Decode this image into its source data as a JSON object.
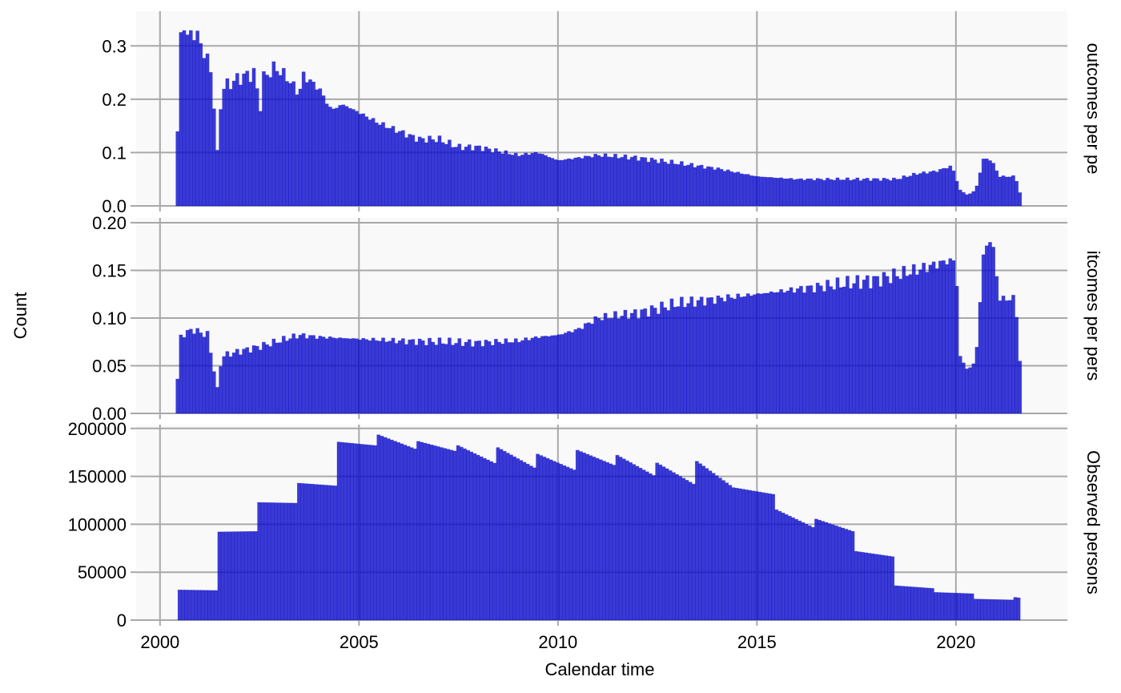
{
  "chart_data": {
    "type": "bar",
    "xlabel": "Calendar time",
    "ylabel": "Count",
    "x_ticks": [
      2000,
      2005,
      2010,
      2015,
      2020
    ],
    "xlim": [
      1999.4,
      2022.8
    ],
    "bar_color": "#1010cc",
    "panel_background": "#f9f9f9",
    "grid_color": "#a8a8a8",
    "panels": [
      {
        "strip_label": "outcomes per pe",
        "ylim": [
          0,
          0.365
        ],
        "y_ticks": [
          "0.0",
          "0.1",
          "0.2",
          "0.3"
        ],
        "y_tick_values": [
          0.0,
          0.1,
          0.2,
          0.3
        ],
        "knots": [
          [
            2000.4,
            0.015
          ],
          [
            2000.5,
            0.31
          ],
          [
            2000.6,
            0.345
          ],
          [
            2000.7,
            0.31
          ],
          [
            2000.8,
            0.33
          ],
          [
            2001.0,
            0.31
          ],
          [
            2001.3,
            0.25
          ],
          [
            2001.45,
            0.09
          ],
          [
            2001.55,
            0.22
          ],
          [
            2002.0,
            0.24
          ],
          [
            2002.4,
            0.25
          ],
          [
            2002.5,
            0.17
          ],
          [
            2002.6,
            0.24
          ],
          [
            2002.9,
            0.26
          ],
          [
            2003.2,
            0.24
          ],
          [
            2003.5,
            0.21
          ],
          [
            2003.6,
            0.245
          ],
          [
            2004.0,
            0.22
          ],
          [
            2004.3,
            0.18
          ],
          [
            2004.6,
            0.19
          ],
          [
            2005.0,
            0.175
          ],
          [
            2005.5,
            0.155
          ],
          [
            2006.0,
            0.14
          ],
          [
            2006.5,
            0.125
          ],
          [
            2007.0,
            0.125
          ],
          [
            2007.5,
            0.11
          ],
          [
            2008.0,
            0.11
          ],
          [
            2009.0,
            0.095
          ],
          [
            2009.5,
            0.1
          ],
          [
            2010.0,
            0.085
          ],
          [
            2010.5,
            0.09
          ],
          [
            2011.0,
            0.095
          ],
          [
            2012.0,
            0.09
          ],
          [
            2013.0,
            0.08
          ],
          [
            2014.0,
            0.07
          ],
          [
            2015.0,
            0.055
          ],
          [
            2016.0,
            0.05
          ],
          [
            2017.0,
            0.05
          ],
          [
            2018.0,
            0.05
          ],
          [
            2018.5,
            0.05
          ],
          [
            2019.0,
            0.06
          ],
          [
            2019.5,
            0.065
          ],
          [
            2019.9,
            0.075
          ],
          [
            2020.1,
            0.03
          ],
          [
            2020.3,
            0.02
          ],
          [
            2020.5,
            0.03
          ],
          [
            2020.7,
            0.09
          ],
          [
            2020.9,
            0.085
          ],
          [
            2021.1,
            0.055
          ],
          [
            2021.5,
            0.055
          ],
          [
            2021.6,
            0.025
          ]
        ]
      },
      {
        "strip_label": "itcomes per pers",
        "ylim": [
          0,
          0.205
        ],
        "y_ticks": [
          "0.00",
          "0.05",
          "0.10",
          "0.15",
          "0.20"
        ],
        "y_tick_values": [
          0.0,
          0.05,
          0.1,
          0.15,
          0.2
        ],
        "knots": [
          [
            2000.4,
            0.004
          ],
          [
            2000.5,
            0.08
          ],
          [
            2000.8,
            0.088
          ],
          [
            2001.2,
            0.082
          ],
          [
            2001.45,
            0.024
          ],
          [
            2001.55,
            0.06
          ],
          [
            2002.0,
            0.065
          ],
          [
            2002.5,
            0.07
          ],
          [
            2003.0,
            0.076
          ],
          [
            2003.5,
            0.082
          ],
          [
            2004.0,
            0.08
          ],
          [
            2005.0,
            0.078
          ],
          [
            2006.0,
            0.076
          ],
          [
            2007.0,
            0.075
          ],
          [
            2008.0,
            0.074
          ],
          [
            2009.0,
            0.076
          ],
          [
            2009.5,
            0.08
          ],
          [
            2010.0,
            0.082
          ],
          [
            2010.5,
            0.088
          ],
          [
            2011.0,
            0.1
          ],
          [
            2012.0,
            0.105
          ],
          [
            2013.0,
            0.115
          ],
          [
            2014.0,
            0.12
          ],
          [
            2015.0,
            0.125
          ],
          [
            2016.0,
            0.13
          ],
          [
            2017.0,
            0.135
          ],
          [
            2018.0,
            0.14
          ],
          [
            2019.0,
            0.15
          ],
          [
            2019.8,
            0.16
          ],
          [
            2020.0,
            0.16
          ],
          [
            2020.1,
            0.06
          ],
          [
            2020.3,
            0.045
          ],
          [
            2020.5,
            0.055
          ],
          [
            2020.7,
            0.17
          ],
          [
            2020.9,
            0.185
          ],
          [
            2021.1,
            0.12
          ],
          [
            2021.5,
            0.12
          ],
          [
            2021.6,
            0.055
          ]
        ]
      },
      {
        "strip_label": "Observed persons",
        "ylim": [
          0,
          204000
        ],
        "y_ticks": [
          "0",
          "50000",
          "100000",
          "150000",
          "200000"
        ],
        "y_tick_values": [
          0,
          50000,
          100000,
          150000,
          200000
        ],
        "steps": [
          [
            2000.45,
            31500,
            30900
          ],
          [
            2001.45,
            92000,
            92600
          ],
          [
            2002.45,
            122800,
            122000
          ],
          [
            2003.45,
            143000,
            140000
          ],
          [
            2004.45,
            186000,
            182000
          ],
          [
            2005.45,
            194000,
            178000
          ],
          [
            2006.45,
            187000,
            176000
          ],
          [
            2007.45,
            183000,
            163000
          ],
          [
            2008.45,
            181000,
            158000
          ],
          [
            2009.45,
            174000,
            156000
          ],
          [
            2010.45,
            178000,
            161000
          ],
          [
            2011.45,
            173000,
            150000
          ],
          [
            2012.45,
            165000,
            141000
          ],
          [
            2013.45,
            167000,
            137000
          ],
          [
            2014.45,
            138000,
            131000
          ],
          [
            2015.45,
            116000,
            96000
          ],
          [
            2016.45,
            106000,
            92000
          ],
          [
            2017.45,
            72000,
            66000
          ],
          [
            2018.45,
            36000,
            33000
          ],
          [
            2019.45,
            29000,
            27500
          ],
          [
            2020.45,
            22000,
            21000
          ],
          [
            2021.45,
            24000,
            18000
          ]
        ],
        "series_end": 2021.6
      }
    ]
  }
}
